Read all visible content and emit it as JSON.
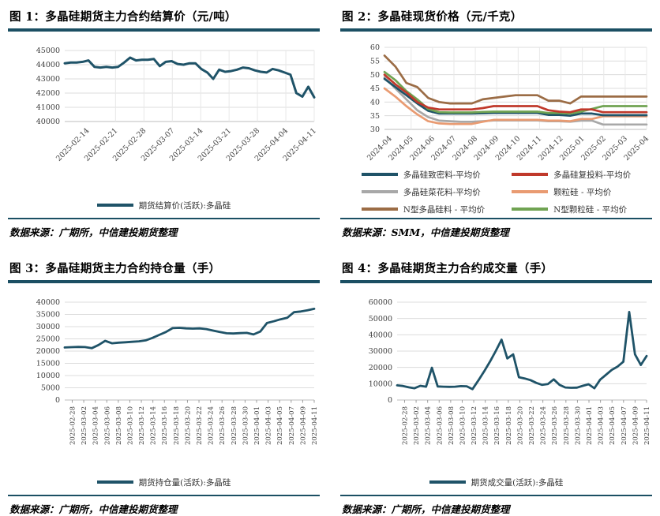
{
  "page": {
    "accent_color": "#1B4F63",
    "background": "#ffffff"
  },
  "chart_data": [
    {
      "type": "line",
      "title": "图 1：多晶硅期货主力合约结算价（元/吨）",
      "source": "数据来源：广期所，中信建投期货整理",
      "xlabel": "",
      "ylabel": "",
      "ylim": [
        40000,
        45000
      ],
      "ytick": 1000,
      "grid": "horizontal+vertical",
      "legend_position": "bottom",
      "xlabels": [
        "2025-02-14",
        "2025-02-21",
        "2025-02-28",
        "2025-03-07",
        "2025-03-14",
        "2025-03-21",
        "2025-03-28",
        "2025-04-04",
        "2025-04-11"
      ],
      "series": [
        {
          "name": "期货结算价(活跃):多晶硅",
          "color": "#1F5368",
          "z": 1,
          "values": [
            44100,
            44150,
            44150,
            44200,
            44300,
            43850,
            43800,
            43850,
            43800,
            43850,
            44150,
            44500,
            44300,
            44350,
            44350,
            44400,
            43900,
            44200,
            44250,
            44050,
            44000,
            44100,
            44100,
            43700,
            43450,
            43000,
            43650,
            43500,
            43550,
            43650,
            43800,
            43750,
            43600,
            43500,
            43450,
            43700,
            43600,
            43450,
            43300,
            42000,
            41750,
            42450,
            41700
          ]
        }
      ]
    },
    {
      "type": "line",
      "title": "图 2：多晶硅现货价格（元/千克）",
      "source": "数据来源：SMM，中信建投期货整理",
      "xlabel": "",
      "ylabel": "",
      "ylim": [
        30,
        60
      ],
      "ytick": 5,
      "grid": "horizontal+vertical",
      "legend_position": "bottom",
      "xlabels": [
        "2024-04",
        "2024-05",
        "2024-06",
        "2024-07",
        "2024-08",
        "2024-09",
        "2024-10",
        "2024-11",
        "2024-12",
        "2025-01",
        "2025-02",
        "2025-03",
        "2025-04"
      ],
      "series": [
        {
          "name": "多晶硅致密料-平均价",
          "color": "#1F5368",
          "z": 3,
          "values": [
            48.5,
            45.5,
            42.5,
            39.5,
            36.8,
            35.8,
            35.8,
            35.8,
            35.8,
            35.9,
            36,
            36,
            36,
            36,
            36,
            35.3,
            35.3,
            35,
            35.8,
            35.8,
            35.2,
            35.2,
            35.2,
            35.2,
            35.2
          ]
        },
        {
          "name": "多晶硅复投料-平均价",
          "color": "#C0392B",
          "z": 5,
          "values": [
            50,
            46.5,
            43.5,
            40,
            38,
            37.3,
            37.3,
            37.3,
            37.3,
            37.8,
            38.5,
            38.5,
            38.5,
            38.5,
            38.5,
            37,
            36.5,
            36.3,
            37.3,
            37.3,
            36.3,
            36.3,
            36.3,
            36.3,
            36.3
          ]
        },
        {
          "name": "多晶硅菜花料-平均价",
          "color": "#A8A8A8",
          "z": 1,
          "values": [
            49,
            45,
            41,
            37,
            34.5,
            33.2,
            33,
            32.8,
            32.8,
            33,
            33.3,
            33.3,
            33.3,
            33.3,
            33.3,
            33,
            33,
            32.8,
            33.2,
            33.2,
            31.8,
            31.8,
            31.8,
            31.8,
            31.8
          ]
        },
        {
          "name": "颗粒硅 - 平均价",
          "color": "#E99B72",
          "z": 2,
          "values": [
            45,
            42,
            38.5,
            35.5,
            33,
            32.2,
            32,
            32,
            32,
            32.8,
            33.5,
            33.5,
            33.5,
            33.5,
            33.5,
            33.2,
            33.2,
            33,
            33.8,
            33.8,
            34.8,
            34.8,
            34.8,
            34.8,
            34.8
          ]
        },
        {
          "name": "N型多晶硅料 - 平均价",
          "color": "#9B6C45",
          "z": 6,
          "values": [
            57,
            53,
            47,
            45.5,
            41.5,
            40,
            39.5,
            39.5,
            39.5,
            41,
            41.5,
            42,
            42.5,
            42.5,
            42.5,
            40.5,
            40.5,
            39.5,
            42,
            42,
            42,
            42,
            42,
            42,
            42
          ]
        },
        {
          "name": "N型颗粒硅 - 平均价",
          "color": "#70A352",
          "z": 4,
          "values": [
            51,
            48,
            44,
            41,
            37.5,
            36.3,
            36.2,
            36.2,
            36.2,
            36.4,
            36.5,
            36.5,
            36.5,
            36.5,
            36.5,
            36,
            36,
            35.8,
            36.5,
            37.5,
            38.5,
            38.5,
            38.5,
            38.5,
            38.5
          ]
        }
      ]
    },
    {
      "type": "line",
      "title": "图 3：多晶硅期货主力合约持仓量（手）",
      "source": "数据来源：广期所，中信建投期货整理",
      "xlabel": "",
      "ylabel": "",
      "ylim": [
        0,
        40000
      ],
      "ytick": 5000,
      "grid": "horizontal",
      "legend_position": "bottom",
      "xlabels": [
        "2025-02-28",
        "2025-03-02",
        "2025-03-04",
        "2025-03-06",
        "2025-03-08",
        "2025-03-10",
        "2025-03-12",
        "2025-03-14",
        "2025-03-16",
        "2025-03-18",
        "2025-03-20",
        "2025-03-22",
        "2025-03-24",
        "2025-03-26",
        "2025-03-28",
        "2025-03-30",
        "2025-04-01",
        "2025-04-03",
        "2025-04-05",
        "2025-04-07",
        "2025-04-09",
        "2025-04-11"
      ],
      "series": [
        {
          "name": "期货持仓量(活跃):多晶硅",
          "color": "#1F5368",
          "z": 1,
          "values": [
            21500,
            21600,
            21700,
            21650,
            21200,
            22500,
            24200,
            23200,
            23450,
            23600,
            23800,
            24000,
            24400,
            25400,
            26600,
            27800,
            29400,
            29500,
            29300,
            29200,
            29300,
            29000,
            28400,
            27800,
            27300,
            27200,
            27350,
            27450,
            26800,
            28000,
            31500,
            32200,
            33000,
            33600,
            35900,
            36200,
            36700,
            37300
          ]
        }
      ]
    },
    {
      "type": "line",
      "title": "图 4：多晶硅期货主力合约成交量（手）",
      "source": "数据来源：广期所，中信建投期货整理",
      "xlabel": "",
      "ylabel": "",
      "ylim": [
        0,
        60000
      ],
      "ytick": 10000,
      "grid": "horizontal",
      "legend_position": "bottom",
      "xlabels": [
        "2025-02-28",
        "2025-03-02",
        "2025-03-04",
        "2025-03-06",
        "2025-03-08",
        "2025-03-10",
        "2025-03-12",
        "2025-03-14",
        "2025-03-16",
        "2025-03-18",
        "2025-03-20",
        "2025-03-22",
        "2025-03-24",
        "2025-03-26",
        "2025-03-28",
        "2025-03-30",
        "2025-04-01",
        "2025-04-03",
        "2025-04-05",
        "2025-04-07",
        "2025-04-09",
        "2025-04-11"
      ],
      "series": [
        {
          "name": "期货成交量(活跃):多晶硅",
          "color": "#1F5368",
          "z": 1,
          "values": [
            9000,
            8600,
            7800,
            7200,
            8700,
            8200,
            19800,
            8300,
            8200,
            8100,
            8200,
            8500,
            8400,
            6700,
            12000,
            17500,
            23500,
            30000,
            37000,
            25500,
            28000,
            14000,
            13200,
            12200,
            10500,
            9300,
            9800,
            12700,
            9300,
            7700,
            7500,
            7600,
            8700,
            9700,
            7200,
            12500,
            15500,
            18500,
            20500,
            23500,
            54000,
            28000,
            21500,
            27000
          ]
        }
      ]
    }
  ]
}
